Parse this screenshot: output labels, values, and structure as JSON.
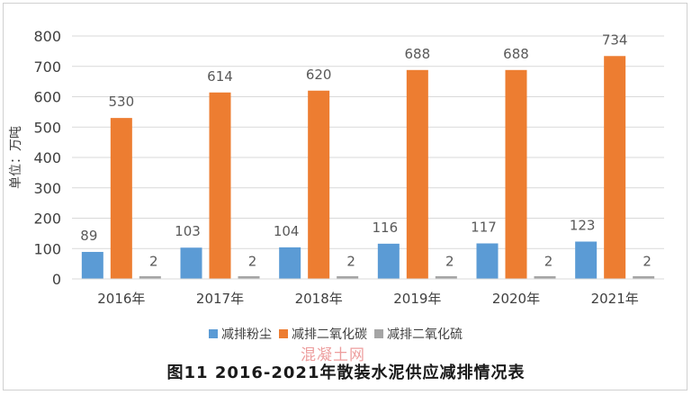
{
  "chart_data": {
    "type": "bar",
    "title": "",
    "ylabel": "单位：万吨",
    "xlabel": "",
    "ylim": [
      0,
      800
    ],
    "yticks": [
      0,
      100,
      200,
      300,
      400,
      500,
      600,
      700,
      800
    ],
    "grid": true,
    "legend_position": "bottom",
    "categories": [
      "2016年",
      "2017年",
      "2018年",
      "2019年",
      "2020年",
      "2021年"
    ],
    "series": [
      {
        "name": "减排粉尘",
        "color": "#5b9bd5",
        "values": [
          89,
          103,
          104,
          116,
          117,
          123
        ]
      },
      {
        "name": "减排二氧化碳",
        "color": "#ed7d31",
        "values": [
          530,
          614,
          620,
          688,
          688,
          734
        ]
      },
      {
        "name": "减排二氧化硫",
        "color": "#a5a5a5",
        "values": [
          2,
          2,
          2,
          2,
          2,
          2
        ]
      }
    ]
  },
  "caption": "图11   2016-2021年散装水泥供应减排情况表",
  "watermark": "混凝土网"
}
